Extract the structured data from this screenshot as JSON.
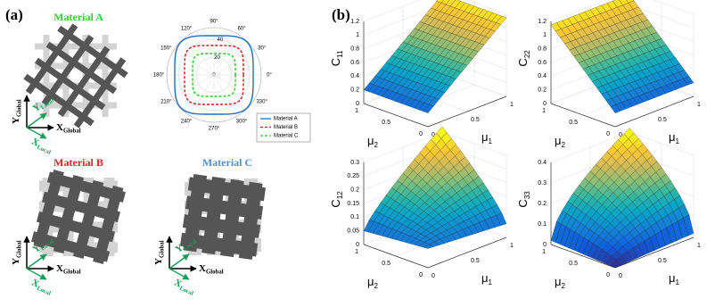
{
  "panel_a": {
    "label": "(a)",
    "materials": [
      {
        "name": "Material A",
        "color": "#2fd62f"
      },
      {
        "name": "Material B",
        "color": "#e82020"
      },
      {
        "name": "Material C",
        "color": "#4f8fcf"
      }
    ],
    "frames": [
      {
        "y_global": [
          "Y",
          "Global"
        ],
        "x_global": [
          "X",
          "Global"
        ],
        "y_local": [
          "Y",
          "Local"
        ],
        "x_local": [
          "X",
          "Local"
        ]
      },
      {
        "y_global": [
          "Y",
          "Global"
        ],
        "x_global": [
          "X",
          "Global"
        ],
        "y_local": [
          "Y",
          "Local"
        ],
        "x_local": [
          "X",
          "Local"
        ]
      },
      {
        "y_global": [
          "Y",
          "Global"
        ],
        "x_global": [
          "X",
          "Global"
        ],
        "y_local": [
          "Y",
          "Local"
        ],
        "x_local": [
          "X",
          "Local"
        ]
      }
    ],
    "polar": {
      "angle_labels": [
        "90°",
        "60°",
        "30°",
        "0°",
        "330°",
        "300°",
        "270°",
        "240°",
        "210°",
        "180°",
        "150°",
        "120°"
      ],
      "radius_labels": [
        "0",
        "20",
        "40"
      ],
      "legend": [
        {
          "name": "Material A",
          "color": "#1f6fbf",
          "dash": "solid"
        },
        {
          "name": "Material B",
          "color": "#e01010",
          "dash": "dashed"
        },
        {
          "name": "Material C",
          "color": "#22cc22",
          "dash": "dashed"
        }
      ]
    }
  },
  "panel_b": {
    "label": "(b)",
    "plots": [
      {
        "z_label": [
          "C",
          "11"
        ],
        "z_ticks": [
          "0",
          "0.2",
          "0.4",
          "0.6",
          "0.8",
          "1",
          "1.2"
        ],
        "mu2_label": [
          "μ",
          "2"
        ],
        "mu2_ticks": [
          "1",
          "0.5",
          "0"
        ],
        "mu1_label": [
          "μ",
          "1"
        ],
        "mu1_ticks": [
          "0",
          "0.5",
          "1"
        ]
      },
      {
        "z_label": [
          "C",
          "22"
        ],
        "z_ticks": [
          "0",
          "0.2",
          "0.4",
          "0.6",
          "0.8",
          "1",
          "1.2"
        ],
        "mu2_label": [
          "μ",
          "2"
        ],
        "mu2_ticks": [
          "1",
          "0.5",
          "0"
        ],
        "mu1_label": [
          "μ",
          "1"
        ],
        "mu1_ticks": [
          "0",
          "0.5",
          "1"
        ]
      },
      {
        "z_label": [
          "C",
          "12"
        ],
        "z_ticks": [
          "0",
          "0.05",
          "0.1",
          "0.15",
          "0.2",
          "0.25",
          "0.3"
        ],
        "mu2_label": [
          "μ",
          "2"
        ],
        "mu2_ticks": [
          "1",
          "0.5",
          "0"
        ],
        "mu1_label": [
          "μ",
          "1"
        ],
        "mu1_ticks": [
          "0",
          "0.5",
          "1"
        ]
      },
      {
        "z_label": [
          "C",
          "33"
        ],
        "z_ticks": [
          "0",
          "0.1",
          "0.2",
          "0.3",
          "0.4"
        ],
        "mu2_label": [
          "μ",
          "2"
        ],
        "mu2_ticks": [
          "1",
          "0.5",
          "0"
        ],
        "mu1_label": [
          "μ",
          "1"
        ],
        "mu1_ticks": [
          "0",
          "0.5",
          "1"
        ]
      }
    ]
  }
}
